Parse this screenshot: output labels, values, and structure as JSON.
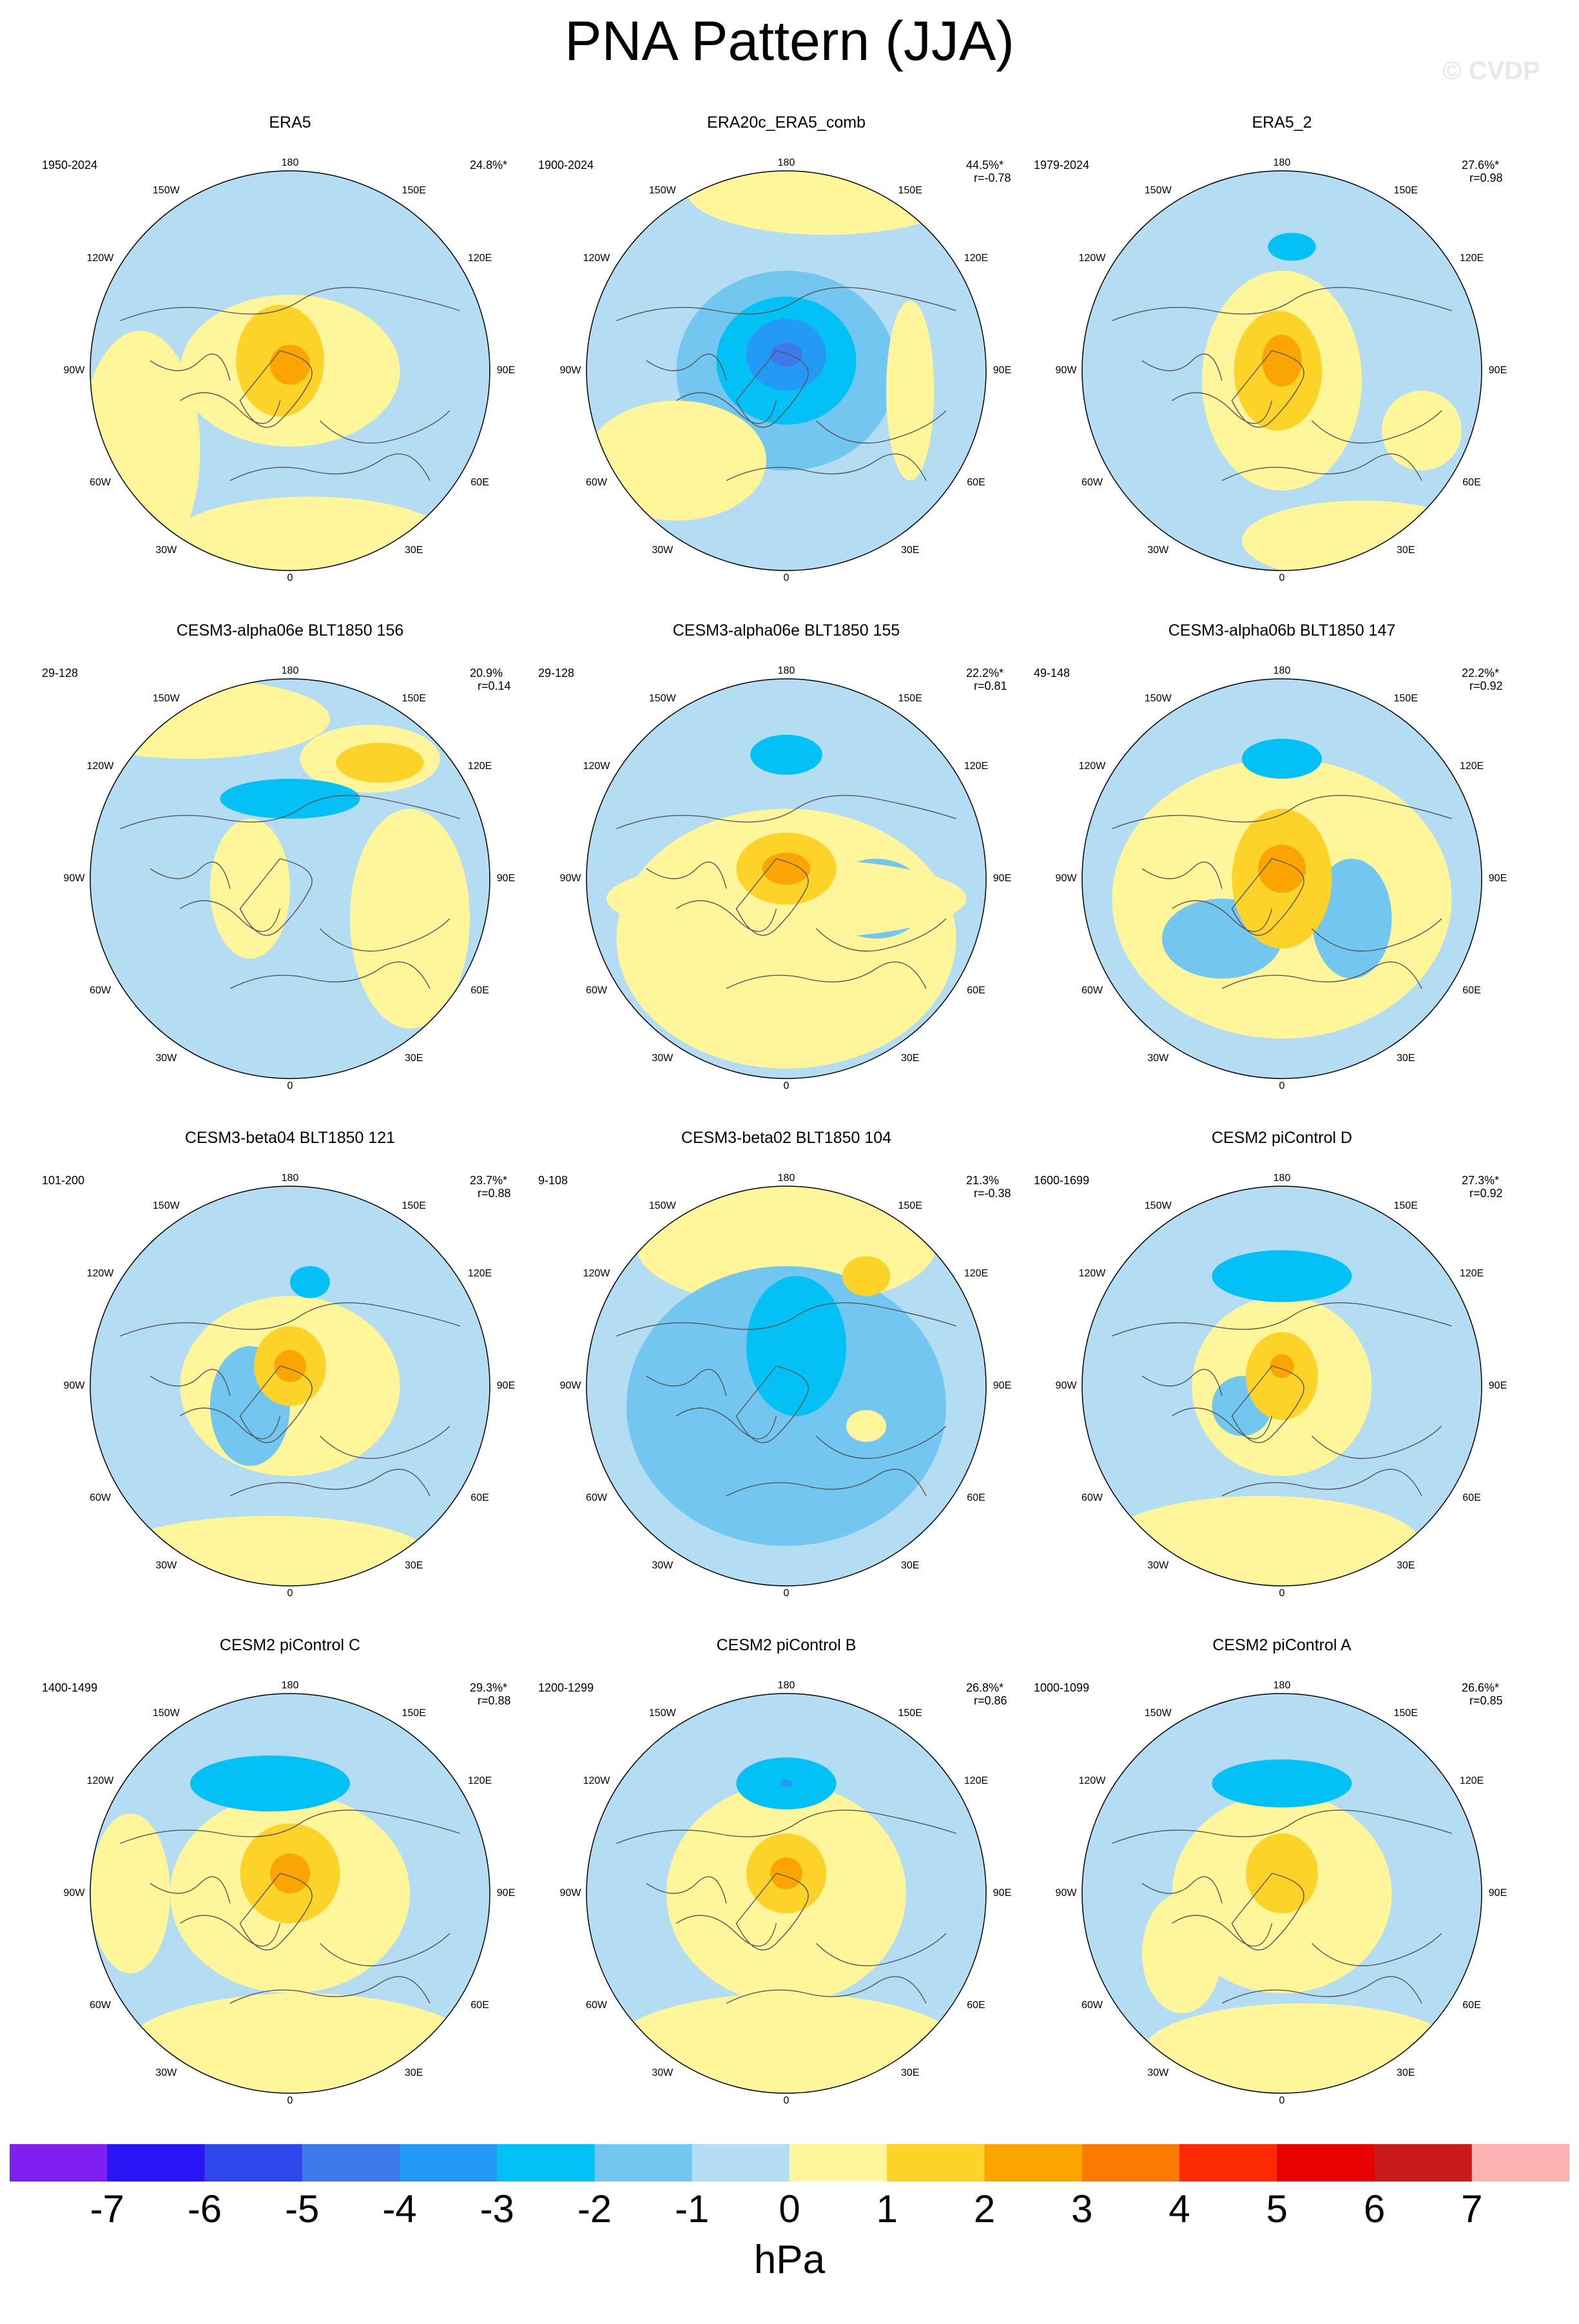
{
  "title": "PNA Pattern (JJA)",
  "watermark": "© CVDP",
  "colorbar": {
    "units": "hPa",
    "ticks": [
      "-7",
      "-6",
      "-5",
      "-4",
      "-3",
      "-2",
      "-1",
      "0",
      "1",
      "2",
      "3",
      "4",
      "5",
      "6",
      "7"
    ],
    "colors": [
      "#7f1ff2",
      "#2a14f5",
      "#2e47eb",
      "#3e79ea",
      "#239af5",
      "#03c0f5",
      "#72c6f0",
      "#b4dcf2",
      "#fff59a",
      "#fdd32a",
      "#fca502",
      "#fa7a02",
      "#fb2a02",
      "#e70101",
      "#c91b1b",
      "#fbb2b2"
    ]
  },
  "map_labels": {
    "top": "180",
    "bottom": "0",
    "left": "90W",
    "right": "90E",
    "ul1": "150W",
    "ur1": "150E",
    "ul2": "120W",
    "ur2": "120E",
    "ll1": "60W",
    "lr1": "60E",
    "ll2": "30W",
    "lr2": "30E"
  },
  "panels": [
    {
      "title": "ERA5",
      "period": "1950-2024",
      "pct": "24.8%*",
      "r": ""
    },
    {
      "title": "ERA20c_ERA5_comb",
      "period": "1900-2024",
      "pct": "44.5%*",
      "r": "r=-0.78"
    },
    {
      "title": "ERA5_2",
      "period": "1979-2024",
      "pct": "27.6%*",
      "r": "r=0.98"
    },
    {
      "title": "CESM3-alpha06e BLT1850 156",
      "period": "29-128",
      "pct": "20.9%",
      "r": "r=0.14"
    },
    {
      "title": "CESM3-alpha06e BLT1850 155",
      "period": "29-128",
      "pct": "22.2%*",
      "r": "r=0.81"
    },
    {
      "title": "CESM3-alpha06b BLT1850 147",
      "period": "49-148",
      "pct": "22.2%*",
      "r": "r=0.92"
    },
    {
      "title": "CESM3-beta04 BLT1850 121",
      "period": "101-200",
      "pct": "23.7%*",
      "r": "r=0.88"
    },
    {
      "title": "CESM3-beta02 BLT1850 104",
      "period": "9-108",
      "pct": "21.3%",
      "r": "r=-0.38"
    },
    {
      "title": "CESM2 piControl D",
      "period": "1600-1699",
      "pct": "27.3%*",
      "r": "r=0.92"
    },
    {
      "title": "CESM2 piControl C",
      "period": "1400-1499",
      "pct": "29.3%*",
      "r": "r=0.88"
    },
    {
      "title": "CESM2 piControl B",
      "period": "1200-1299",
      "pct": "26.8%*",
      "r": "r=0.86"
    },
    {
      "title": "CESM2 piControl A",
      "period": "1000-1099",
      "pct": "26.6%*",
      "r": "r=0.85"
    }
  ],
  "chart_data": {
    "type": "map",
    "projection": "north polar stereographic",
    "variable": "PNA pattern sea level pressure regression (JJA)",
    "units": "hPa",
    "contour_levels": [
      -7,
      -6,
      -5,
      -4,
      -3,
      -2,
      -1,
      0,
      1,
      2,
      3,
      4,
      5,
      6,
      7
    ]
  }
}
